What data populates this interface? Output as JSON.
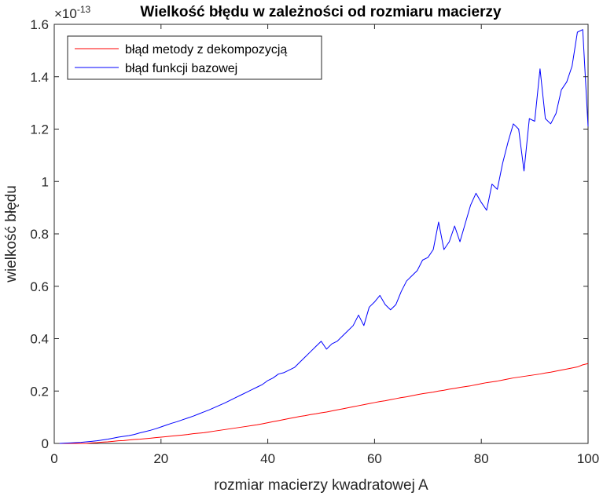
{
  "chart_data": {
    "type": "line",
    "title": "Wielkość błędu w zależności od rozmiaru macierzy",
    "xlabel": "rozmiar macierzy kwadratowej A",
    "ylabel": "wielkość błędu",
    "y_exponent_label": "×10",
    "y_exponent_power": "-13",
    "xlim": [
      0,
      100
    ],
    "ylim": [
      0,
      1.6
    ],
    "xticks": [
      0,
      20,
      40,
      60,
      80,
      100
    ],
    "xtick_labels": [
      "0",
      "20",
      "40",
      "60",
      "80",
      "100"
    ],
    "yticks": [
      0,
      0.2,
      0.4,
      0.6,
      0.8,
      1.0,
      1.2,
      1.4,
      1.6
    ],
    "ytick_labels": [
      "0",
      "0.2",
      "0.4",
      "0.6",
      "0.8",
      "1",
      "1.2",
      "1.4",
      "1.6"
    ],
    "legend_placement": "top-left",
    "grid": false,
    "series": [
      {
        "name": "błąd metody z dekompozycją",
        "color": "#ff0000",
        "x": [
          1,
          2,
          3,
          4,
          5,
          6,
          7,
          8,
          9,
          10,
          11,
          12,
          13,
          14,
          15,
          16,
          17,
          18,
          19,
          20,
          21,
          22,
          23,
          24,
          25,
          26,
          27,
          28,
          29,
          30,
          31,
          32,
          33,
          34,
          35,
          36,
          37,
          38,
          39,
          40,
          41,
          42,
          43,
          44,
          45,
          46,
          47,
          48,
          49,
          50,
          51,
          52,
          53,
          54,
          55,
          56,
          57,
          58,
          59,
          60,
          61,
          62,
          63,
          64,
          65,
          66,
          67,
          68,
          69,
          70,
          71,
          72,
          73,
          74,
          75,
          76,
          77,
          78,
          79,
          80,
          81,
          82,
          83,
          84,
          85,
          86,
          87,
          88,
          89,
          90,
          91,
          92,
          93,
          94,
          95,
          96,
          97,
          98,
          99,
          100
        ],
        "values": [
          0.0,
          0.0,
          0.0,
          0.0,
          0.0,
          0.0,
          0.002,
          0.003,
          0.005,
          0.006,
          0.008,
          0.01,
          0.011,
          0.013,
          0.015,
          0.016,
          0.018,
          0.02,
          0.022,
          0.024,
          0.026,
          0.028,
          0.03,
          0.032,
          0.034,
          0.037,
          0.039,
          0.041,
          0.044,
          0.047,
          0.05,
          0.053,
          0.056,
          0.059,
          0.062,
          0.065,
          0.068,
          0.071,
          0.075,
          0.079,
          0.083,
          0.087,
          0.091,
          0.095,
          0.099,
          0.103,
          0.106,
          0.11,
          0.113,
          0.117,
          0.12,
          0.124,
          0.128,
          0.132,
          0.136,
          0.14,
          0.144,
          0.148,
          0.152,
          0.156,
          0.16,
          0.163,
          0.167,
          0.171,
          0.175,
          0.178,
          0.182,
          0.186,
          0.19,
          0.193,
          0.196,
          0.2,
          0.203,
          0.207,
          0.21,
          0.214,
          0.217,
          0.22,
          0.224,
          0.228,
          0.232,
          0.235,
          0.238,
          0.242,
          0.246,
          0.25,
          0.253,
          0.256,
          0.259,
          0.262,
          0.265,
          0.269,
          0.272,
          0.276,
          0.28,
          0.284,
          0.288,
          0.292,
          0.3,
          0.305
        ]
      },
      {
        "name": "błąd funkcji bazowej",
        "color": "#0000ff",
        "x": [
          1,
          2,
          3,
          4,
          5,
          6,
          7,
          8,
          9,
          10,
          11,
          12,
          13,
          14,
          15,
          16,
          17,
          18,
          19,
          20,
          21,
          22,
          23,
          24,
          25,
          26,
          27,
          28,
          29,
          30,
          31,
          32,
          33,
          34,
          35,
          36,
          37,
          38,
          39,
          40,
          41,
          42,
          43,
          44,
          45,
          46,
          47,
          48,
          49,
          50,
          51,
          52,
          53,
          54,
          55,
          56,
          57,
          58,
          59,
          60,
          61,
          62,
          63,
          64,
          65,
          66,
          67,
          68,
          69,
          70,
          71,
          72,
          73,
          74,
          75,
          76,
          77,
          78,
          79,
          80,
          81,
          82,
          83,
          84,
          85,
          86,
          87,
          88,
          89,
          90,
          91,
          92,
          93,
          94,
          95,
          96,
          97,
          98,
          99,
          100
        ],
        "values": [
          0.0,
          0.001,
          0.002,
          0.003,
          0.004,
          0.006,
          0.008,
          0.01,
          0.013,
          0.016,
          0.02,
          0.024,
          0.027,
          0.03,
          0.034,
          0.04,
          0.045,
          0.05,
          0.056,
          0.063,
          0.07,
          0.077,
          0.083,
          0.09,
          0.097,
          0.104,
          0.112,
          0.12,
          0.128,
          0.137,
          0.146,
          0.155,
          0.165,
          0.175,
          0.185,
          0.195,
          0.205,
          0.215,
          0.225,
          0.24,
          0.25,
          0.265,
          0.27,
          0.28,
          0.29,
          0.31,
          0.33,
          0.35,
          0.37,
          0.39,
          0.36,
          0.38,
          0.39,
          0.41,
          0.43,
          0.45,
          0.49,
          0.45,
          0.52,
          0.54,
          0.565,
          0.53,
          0.51,
          0.53,
          0.58,
          0.62,
          0.64,
          0.66,
          0.7,
          0.71,
          0.74,
          0.845,
          0.74,
          0.77,
          0.83,
          0.77,
          0.84,
          0.91,
          0.955,
          0.92,
          0.89,
          0.99,
          0.97,
          1.07,
          1.15,
          1.22,
          1.2,
          1.04,
          1.24,
          1.23,
          1.43,
          1.24,
          1.22,
          1.26,
          1.35,
          1.38,
          1.44,
          1.57,
          1.58,
          1.21
        ]
      }
    ]
  }
}
